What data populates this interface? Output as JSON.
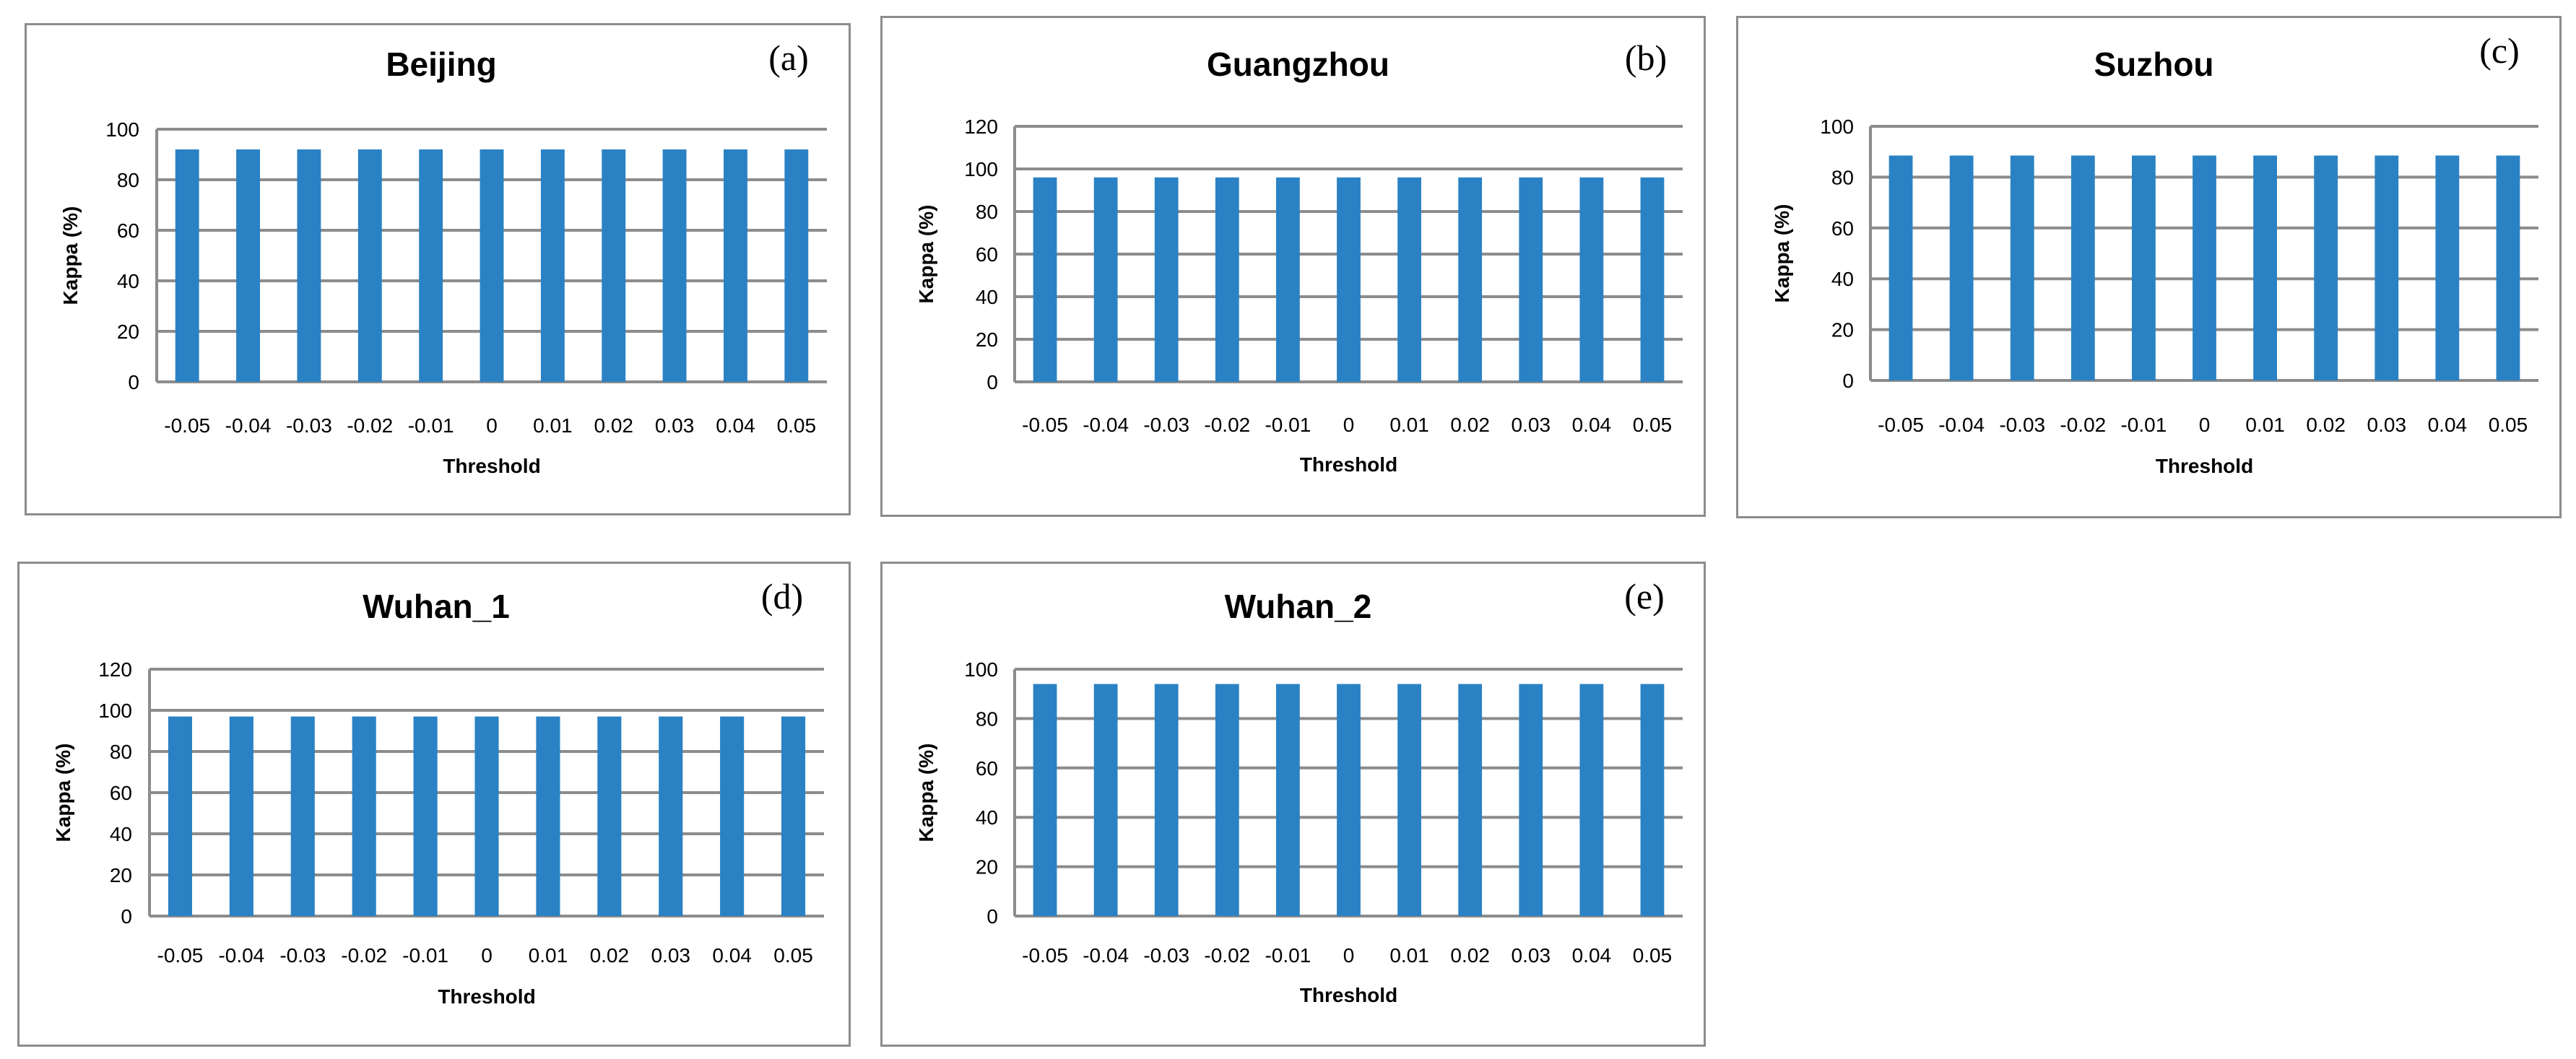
{
  "colors": {
    "bar": "#2a82c4",
    "grid": "#8c8c8c",
    "axis": "#8c8c8c"
  },
  "chart_data": [
    {
      "type": "bar",
      "panel_label": "(a)",
      "title": "Beijing",
      "xlabel": "Threshold",
      "ylabel": "Kappa (%)",
      "categories": [
        "-0.05",
        "-0.04",
        "-0.03",
        "-0.02",
        "-0.01",
        "0",
        "0.01",
        "0.02",
        "0.03",
        "0.04",
        "0.05"
      ],
      "values": [
        92,
        92,
        92,
        92,
        92,
        92,
        92,
        92,
        92,
        92,
        92
      ],
      "ylim": [
        0,
        100
      ],
      "yticks": [
        0,
        20,
        40,
        60,
        80,
        100
      ],
      "grid": true
    },
    {
      "type": "bar",
      "panel_label": "(b)",
      "title": "Guangzhou",
      "xlabel": "Threshold",
      "ylabel": "Kappa (%)",
      "categories": [
        "-0.05",
        "-0.04",
        "-0.03",
        "-0.02",
        "-0.01",
        "0",
        "0.01",
        "0.02",
        "0.03",
        "0.04",
        "0.05"
      ],
      "values": [
        96,
        96,
        96,
        96,
        96,
        96,
        96,
        96,
        96,
        96,
        96
      ],
      "ylim": [
        0,
        120
      ],
      "yticks": [
        0,
        20,
        40,
        60,
        80,
        100,
        120
      ],
      "grid": true
    },
    {
      "type": "bar",
      "panel_label": "(c)",
      "title": "Suzhou",
      "xlabel": "Threshold",
      "ylabel": "Kappa (%)",
      "categories": [
        "-0.05",
        "-0.04",
        "-0.03",
        "-0.02",
        "-0.01",
        "0",
        "0.01",
        "0.02",
        "0.03",
        "0.04",
        "0.05"
      ],
      "values": [
        88.5,
        88.5,
        88.5,
        88.5,
        88.5,
        88.5,
        88.5,
        88.5,
        88.5,
        88.5,
        88.5
      ],
      "ylim": [
        0,
        100
      ],
      "yticks": [
        0,
        20,
        40,
        60,
        80,
        100
      ],
      "grid": true
    },
    {
      "type": "bar",
      "panel_label": "(d)",
      "title": "Wuhan_1",
      "xlabel": "Threshold",
      "ylabel": "Kappa (%)",
      "categories": [
        "-0.05",
        "-0.04",
        "-0.03",
        "-0.02",
        "-0.01",
        "0",
        "0.01",
        "0.02",
        "0.03",
        "0.04",
        "0.05"
      ],
      "values": [
        97,
        97,
        97,
        97,
        97,
        97,
        97,
        97,
        97,
        97,
        97
      ],
      "ylim": [
        0,
        120
      ],
      "yticks": [
        0,
        20,
        40,
        60,
        80,
        100,
        120
      ],
      "grid": true
    },
    {
      "type": "bar",
      "panel_label": "(e)",
      "title": "Wuhan_2",
      "xlabel": "Threshold",
      "ylabel": "Kappa (%)",
      "categories": [
        "-0.05",
        "-0.04",
        "-0.03",
        "-0.02",
        "-0.01",
        "0",
        "0.01",
        "0.02",
        "0.03",
        "0.04",
        "0.05"
      ],
      "values": [
        94,
        94,
        94,
        94,
        94,
        94,
        94,
        94,
        94,
        94,
        94
      ],
      "ylim": [
        0,
        100
      ],
      "yticks": [
        0,
        20,
        40,
        60,
        80,
        100
      ],
      "grid": true
    }
  ]
}
